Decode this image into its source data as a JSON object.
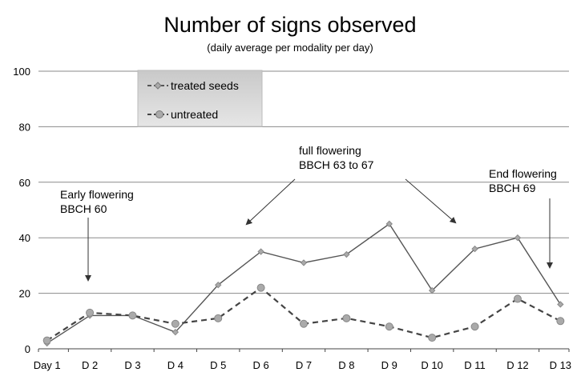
{
  "chart_data": {
    "type": "line",
    "title": "Number of signs observed",
    "subtitle": "(daily average per modality per day)",
    "xlabel": "",
    "ylabel": "",
    "categories": [
      "Day 1",
      "D 2",
      "D 3",
      "D 4",
      "D 5",
      "D 6",
      "D 7",
      "D 8",
      "D 9",
      "D 10",
      "D 11",
      "D 12",
      "D 13"
    ],
    "ylim": [
      0,
      100
    ],
    "yticks": [
      "0",
      "20",
      "40",
      "60",
      "80",
      "100"
    ],
    "grid": true,
    "legend_position": "top-left",
    "series": [
      {
        "name": "treated seeds",
        "color": "#555555",
        "marker": "diamond",
        "line": "solid",
        "values": [
          2,
          12,
          12,
          6,
          23,
          35,
          31,
          34,
          45,
          21,
          36,
          40,
          16
        ]
      },
      {
        "name": "untreated",
        "color": "#444444",
        "marker": "circle",
        "line": "dashed",
        "values": [
          3,
          13,
          12,
          9,
          11,
          22,
          9,
          11,
          8,
          4,
          8,
          18,
          10
        ]
      }
    ],
    "annotations": [
      {
        "lines": [
          "Early flowering",
          "BBCH 60"
        ]
      },
      {
        "lines": [
          "full flowering",
          "BBCH 63 to 67"
        ]
      },
      {
        "lines": [
          "End flowering",
          "BBCH 69"
        ]
      }
    ]
  }
}
